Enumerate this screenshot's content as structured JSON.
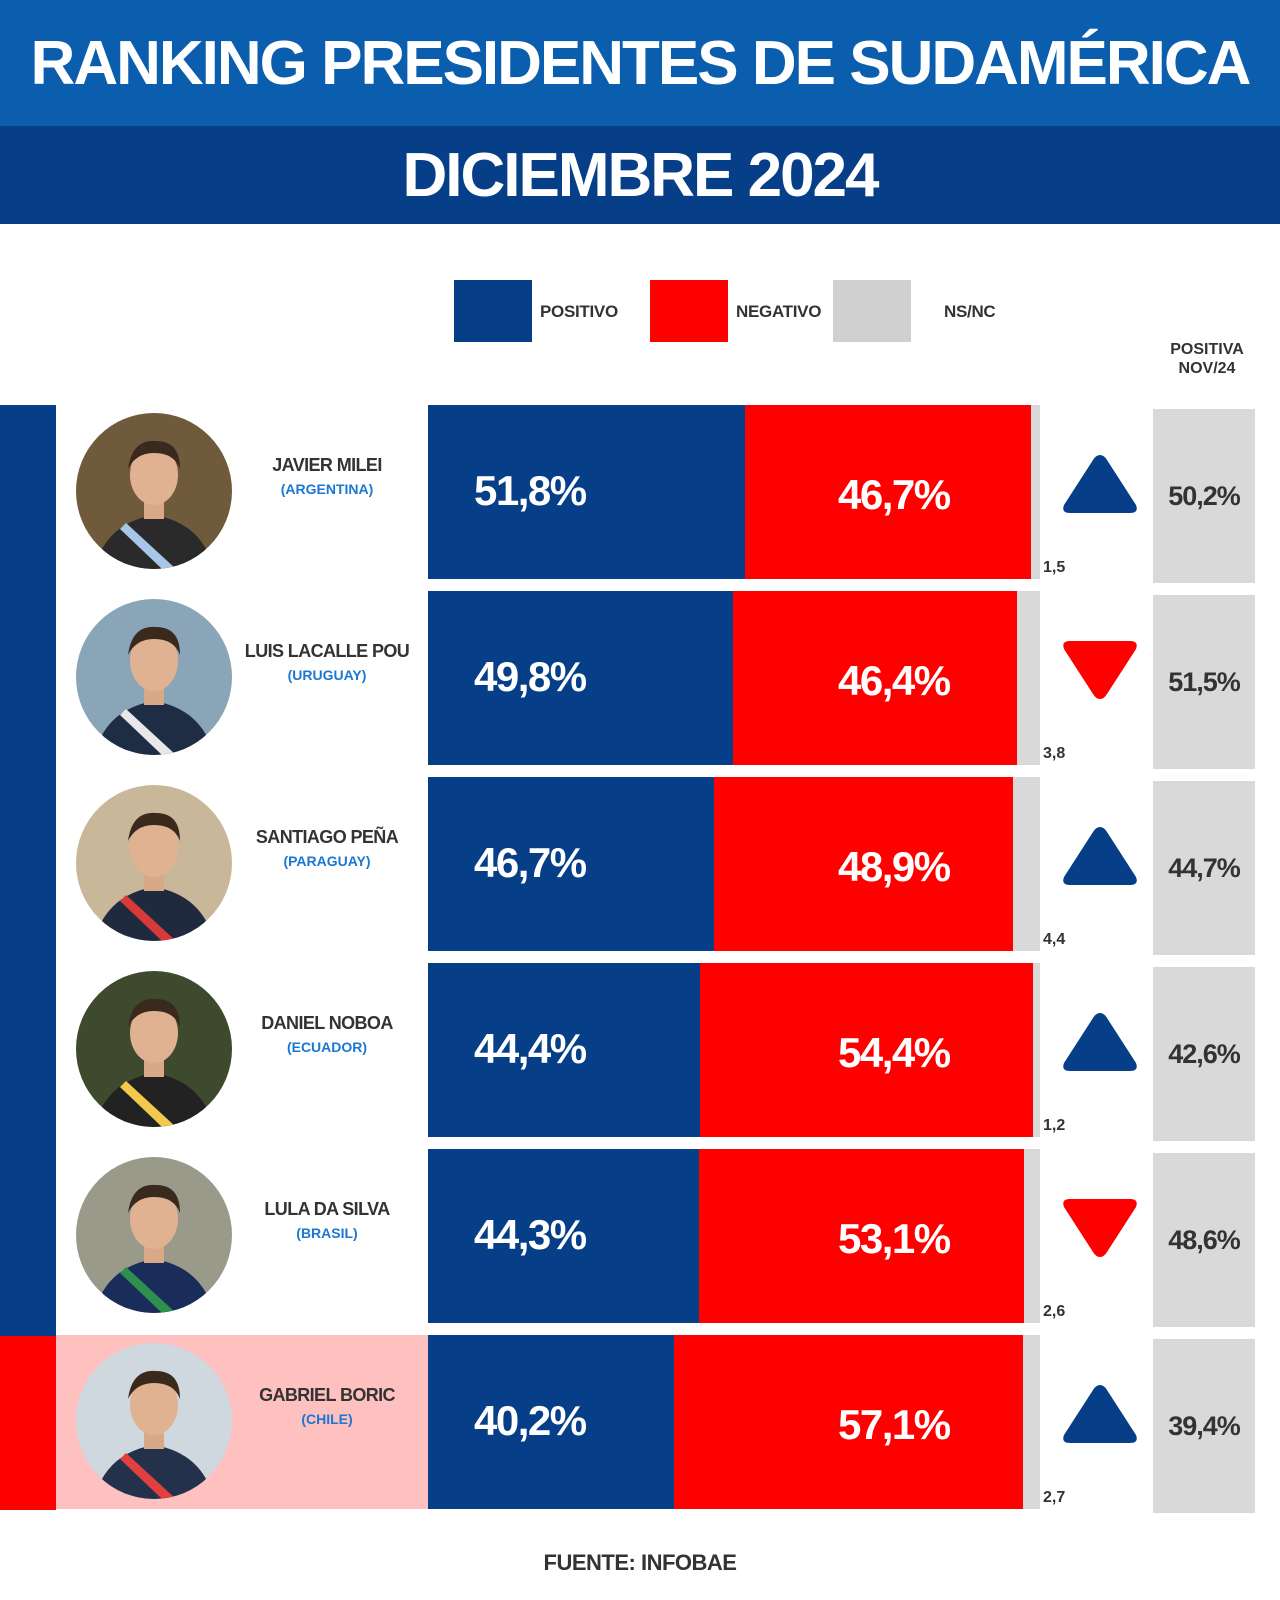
{
  "header": {
    "title": "RANKING PRESIDENTES DE SUDAMÉRICA",
    "subtitle": "DICIEMBRE 2024"
  },
  "legend": {
    "positivo": "POSITIVO",
    "negativo": "NEGATIVO",
    "nsnc": "NS/NC"
  },
  "previous_header": {
    "line1": "POSITIVA",
    "line2": "NOV/24"
  },
  "colors": {
    "positivo": "#063f88",
    "negativo": "#ff0000",
    "nsnc": "#d9d9d9",
    "header_top": "#0b5eae",
    "header_bottom": "#063f88",
    "country": "#1b77d2",
    "highlight_row": "#ffc0c0"
  },
  "chart_data": {
    "type": "bar",
    "stacked": true,
    "orientation": "horizontal",
    "title": "RANKING PRESIDENTES DE SUDAMÉRICA",
    "subtitle": "DICIEMBRE 2024",
    "categories": [
      "JAVIER MILEI",
      "LUIS LACALLE POU",
      "SANTIAGO PEÑA",
      "DANIEL NOBOA",
      "LULA DA SILVA",
      "GABRIEL BORIC"
    ],
    "series": [
      {
        "name": "POSITIVO",
        "values": [
          51.8,
          49.8,
          46.7,
          44.4,
          44.3,
          40.2
        ]
      },
      {
        "name": "NEGATIVO",
        "values": [
          46.7,
          46.4,
          48.9,
          54.4,
          53.1,
          57.1
        ]
      },
      {
        "name": "NS/NC",
        "values": [
          1.5,
          3.8,
          4.4,
          1.2,
          2.6,
          2.7
        ]
      }
    ],
    "source": "FUENTE: INFOBAE"
  },
  "presidents": [
    {
      "name": "JAVIER MILEI",
      "country": "(ARGENTINA)",
      "positivo": 51.8,
      "negativo": 46.7,
      "nsnc": 1.5,
      "positivo_label": "51,8%",
      "negativo_label": "46,7%",
      "nsnc_label": "1,5",
      "trend": "up",
      "trend_icon": "triangle-up-icon",
      "previous": 50.2,
      "previous_label": "50,2%",
      "highlight": false
    },
    {
      "name": "LUIS LACALLE POU",
      "country": "(URUGUAY)",
      "positivo": 49.8,
      "negativo": 46.4,
      "nsnc": 3.8,
      "positivo_label": "49,8%",
      "negativo_label": "46,4%",
      "nsnc_label": "3,8",
      "trend": "down",
      "trend_icon": "triangle-down-icon",
      "previous": 51.5,
      "previous_label": "51,5%",
      "highlight": false
    },
    {
      "name": "SANTIAGO PEÑA",
      "country": "(PARAGUAY)",
      "positivo": 46.7,
      "negativo": 48.9,
      "nsnc": 4.4,
      "positivo_label": "46,7%",
      "negativo_label": "48,9%",
      "nsnc_label": "4,4",
      "trend": "up",
      "trend_icon": "triangle-up-icon",
      "previous": 44.7,
      "previous_label": "44,7%",
      "highlight": false
    },
    {
      "name": "DANIEL NOBOA",
      "country": "(ECUADOR)",
      "positivo": 44.4,
      "negativo": 54.4,
      "nsnc": 1.2,
      "positivo_label": "44,4%",
      "negativo_label": "54,4%",
      "nsnc_label": "1,2",
      "trend": "up",
      "trend_icon": "triangle-up-icon",
      "previous": 42.6,
      "previous_label": "42,6%",
      "highlight": false
    },
    {
      "name": "LULA DA SILVA",
      "country": "(BRASIL)",
      "positivo": 44.3,
      "negativo": 53.1,
      "nsnc": 2.6,
      "positivo_label": "44,3%",
      "negativo_label": "53,1%",
      "nsnc_label": "2,6",
      "trend": "down",
      "trend_icon": "triangle-down-icon",
      "previous": 48.6,
      "previous_label": "48,6%",
      "highlight": false
    },
    {
      "name": "GABRIEL BORIC",
      "country": "(CHILE)",
      "positivo": 40.2,
      "negativo": 57.1,
      "nsnc": 2.7,
      "positivo_label": "40,2%",
      "negativo_label": "57,1%",
      "nsnc_label": "2,7",
      "trend": "up",
      "trend_icon": "triangle-up-icon",
      "previous": 39.4,
      "previous_label": "39,4%",
      "highlight": true
    }
  ],
  "source": "FUENTE: INFOBAE"
}
